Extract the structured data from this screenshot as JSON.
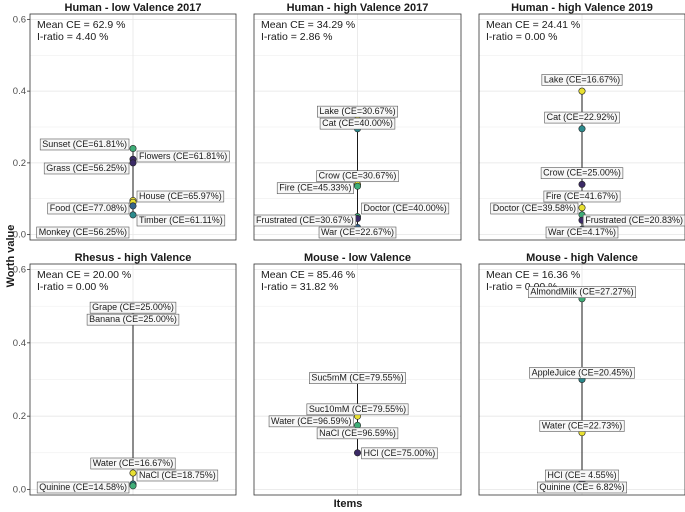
{
  "figure": {
    "ylabel": "Worth value",
    "xlabel": "Items",
    "colors": {
      "yellow": "#e8e032",
      "green": "#3fae78",
      "teal": "#2b8a8c",
      "blue": "#35648c",
      "purple": "#3b2a66",
      "line": "#1a1a1a",
      "grid": "#e6e6e6",
      "label_border": "#555555",
      "label_fill": "#f7f7f7"
    }
  },
  "chart_data": [
    {
      "type": "scatter",
      "title": "Human - low Valence 2017",
      "ylim": [
        -0.015,
        0.615
      ],
      "yticks": [
        "0.0",
        "0.2",
        "0.4",
        "0.6"
      ],
      "yticks_values": [
        0.0,
        0.2,
        0.4,
        0.6
      ],
      "stats": [
        "Mean CE = 62.9 %",
        "I-ratio = 4.40 %"
      ],
      "points": [
        {
          "label": "Sunset (CE=61.81%)",
          "value": 0.24,
          "color": "green",
          "label_side": "left"
        },
        {
          "label": "Flowers (CE=61.81%)",
          "value": 0.21,
          "color": "purple",
          "label_side": "right"
        },
        {
          "label": "Grass (CE=56.25%)",
          "value": 0.2,
          "color": "purple",
          "label_side": "left"
        },
        {
          "label": "House (CE=65.97%)",
          "value": 0.095,
          "color": "yellow",
          "label_side": "right"
        },
        {
          "label": "Food (CE=77.08%)",
          "value": 0.09,
          "color": "yellow",
          "label_side": "left"
        },
        {
          "label": "Timber (CE=61.11%)",
          "value": 0.08,
          "color": "blue",
          "label_side": "right"
        },
        {
          "label": "Monkey (CE=56.25%)",
          "value": 0.055,
          "color": "teal",
          "label_side": "left"
        }
      ]
    },
    {
      "type": "scatter",
      "title": "Human - high Valence 2017",
      "ylim": [
        -0.015,
        0.615
      ],
      "stats": [
        "Mean CE = 34.29 %",
        "I-ratio = 2.86 %"
      ],
      "points": [
        {
          "label": "Lake (CE=30.67%)",
          "value": 0.32,
          "color": "yellow",
          "label_side": "center"
        },
        {
          "label": "Cat (CE=40.00%)",
          "value": 0.295,
          "color": "teal",
          "label_side": "center"
        },
        {
          "label": "Crow (CE=30.67%)",
          "value": 0.14,
          "color": "yellow",
          "label_side": "center"
        },
        {
          "label": "Fire (CE=45.33%)",
          "value": 0.135,
          "color": "green",
          "label_side": "left"
        },
        {
          "label": "Doctor (CE=40.00%)",
          "value": 0.05,
          "color": "green",
          "label_side": "right"
        },
        {
          "label": "Frustrated (CE=30.67%)",
          "value": 0.045,
          "color": "purple",
          "label_side": "left"
        },
        {
          "label": "War (CE=22.67%)",
          "value": 0.02,
          "color": "blue",
          "label_side": "center"
        }
      ]
    },
    {
      "type": "scatter",
      "title": "Human - high Valence 2019",
      "ylim": [
        -0.015,
        0.615
      ],
      "stats": [
        "Mean CE = 24.41 %",
        "I-ratio = 0.00 %"
      ],
      "points": [
        {
          "label": "Lake (CE=16.67%)",
          "value": 0.4,
          "color": "yellow",
          "label_side": "center"
        },
        {
          "label": "Cat (CE=22.92%)",
          "value": 0.295,
          "color": "teal",
          "label_side": "center"
        },
        {
          "label": "Crow (CE=25.00%)",
          "value": 0.14,
          "color": "purple",
          "label_side": "center"
        },
        {
          "label": "Fire (CE=41.67%)",
          "value": 0.075,
          "color": "yellow",
          "label_side": "center"
        },
        {
          "label": "Doctor (CE=39.58%)",
          "value": 0.055,
          "color": "green",
          "label_side": "left"
        },
        {
          "label": "Frustrated (CE=20.83%)",
          "value": 0.04,
          "color": "purple",
          "label_side": "right"
        },
        {
          "label": "War (CE=4.17%)",
          "value": 0.015,
          "color": "blue",
          "label_side": "center"
        }
      ]
    },
    {
      "type": "scatter",
      "title": "Rhesus - high Valence",
      "ylim": [
        -0.015,
        0.615
      ],
      "yticks": [
        "0.0",
        "0.2",
        "0.4",
        "0.6"
      ],
      "yticks_values": [
        0.0,
        0.2,
        0.4,
        0.6
      ],
      "stats": [
        "Mean CE = 20.00 %",
        "I-ratio = 0.00 %"
      ],
      "points": [
        {
          "label": "Grape (CE=25.00%)",
          "value": 0.47,
          "color": "purple",
          "label_side": "center"
        },
        {
          "label": "Banana (CE=25.00%)",
          "value": 0.465,
          "color": "blue",
          "label_side": "center"
        },
        {
          "label": "Water (CE=16.67%)",
          "value": 0.045,
          "color": "yellow",
          "label_side": "center"
        },
        {
          "label": "NaCl (CE=18.75%)",
          "value": 0.015,
          "color": "teal",
          "label_side": "right"
        },
        {
          "label": "Quinine (CE=14.58%)",
          "value": 0.01,
          "color": "green",
          "label_side": "left"
        }
      ]
    },
    {
      "type": "scatter",
      "title": "Mouse - low Valence",
      "ylim": [
        -0.015,
        0.615
      ],
      "stats": [
        "Mean CE = 85.46 %",
        "I-ratio = 31.82 %"
      ],
      "points": [
        {
          "label": "Suc5mM (CE=79.55%)",
          "value": 0.305,
          "color": "blue",
          "label_side": "center"
        },
        {
          "label": "Suc10mM (CE=79.55%)",
          "value": 0.22,
          "color": "teal",
          "label_side": "center"
        },
        {
          "label": "Water (CE=96.59%)",
          "value": 0.2,
          "color": "yellow",
          "label_side": "left"
        },
        {
          "label": "NaCl (CE=96.59%)",
          "value": 0.175,
          "color": "green",
          "label_side": "center"
        },
        {
          "label": "HCl (CE=75.00%)",
          "value": 0.1,
          "color": "purple",
          "label_side": "right"
        }
      ]
    },
    {
      "type": "scatter",
      "title": "Mouse - high Valence",
      "ylim": [
        -0.015,
        0.615
      ],
      "stats": [
        "Mean CE = 16.36 %",
        "I-ratio = 0.00 %"
      ],
      "points": [
        {
          "label": "AlmondMilk (CE=27.27%)",
          "value": 0.52,
          "color": "green",
          "label_side": "center"
        },
        {
          "label": "AppleJuice (CE=20.45%)",
          "value": 0.3,
          "color": "teal",
          "label_side": "center"
        },
        {
          "label": "Water (CE=22.73%)",
          "value": 0.155,
          "color": "yellow",
          "label_side": "center"
        },
        {
          "label": "HCl (CE= 4.55%)",
          "value": 0.02,
          "color": "blue",
          "label_side": "center"
        },
        {
          "label": "Quinine (CE= 6.82%)",
          "value": 0.015,
          "color": "purple",
          "label_side": "center"
        }
      ]
    }
  ]
}
